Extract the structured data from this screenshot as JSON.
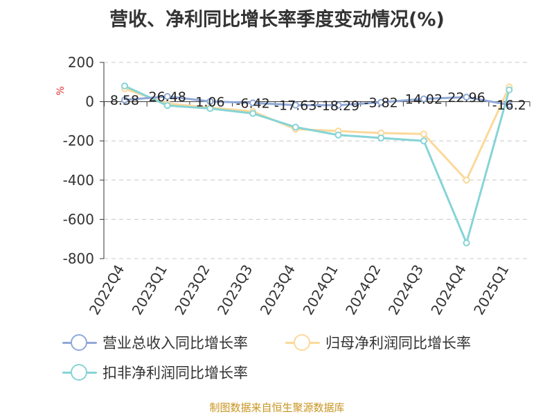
{
  "title": "营收、净利同比增长率季度变动情况(%)",
  "source": "制图数据来自恒生聚源数据库",
  "chart_data": {
    "type": "line",
    "title": "营收、净利同比增长率季度变动情况(%)",
    "ylabel": "%",
    "xlabel": "",
    "categories": [
      "2022Q4",
      "2023Q1",
      "2023Q2",
      "2023Q3",
      "2023Q4",
      "2024Q1",
      "2024Q2",
      "2024Q3",
      "2024Q4",
      "2025Q1"
    ],
    "ylim": [
      -800,
      200
    ],
    "yticks": [
      200,
      0,
      -200,
      -400,
      -600,
      -800
    ],
    "grid": "horizontal dashed",
    "legend_position": "bottom",
    "series": [
      {
        "name": "营业总收入同比增长率",
        "color": "#8fa8d8",
        "values": [
          8.58,
          26.48,
          1.06,
          -6.42,
          -17.63,
          -18.29,
          -3.82,
          14.02,
          22.96,
          -16.2
        ],
        "labels": [
          "8.58",
          "26.48",
          "1.06",
          "-6.42",
          "-17.63",
          "-18.29",
          "-3.82",
          "14.02",
          "22.96",
          "-16.2"
        ]
      },
      {
        "name": "归母净利润同比增长率",
        "color": "#fcd89a",
        "values": [
          66,
          -10,
          -30,
          -50,
          -140,
          -150,
          -160,
          -165,
          -400,
          75
        ]
      },
      {
        "name": "扣非净利润同比增长率",
        "color": "#86d4d6",
        "values": [
          80,
          -20,
          -35,
          -60,
          -130,
          -170,
          -185,
          -200,
          -720,
          60
        ]
      }
    ]
  }
}
